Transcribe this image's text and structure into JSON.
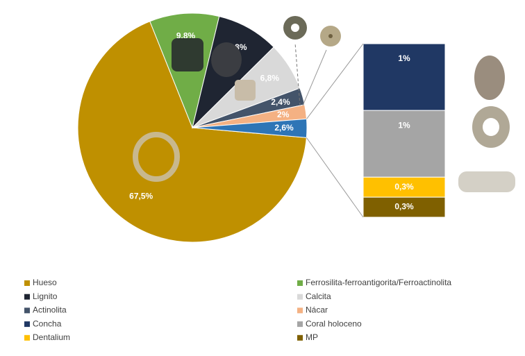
{
  "chart_data": [
    {
      "type": "pie",
      "categories": [
        "Hueso",
        "Ferrosilita-ferroantigorita/Ferroactinolita",
        "Lignito",
        "Calcita",
        "Actinolita",
        "Nácar",
        null
      ],
      "values": [
        67.5,
        9.8,
        8.8,
        6.8,
        2.4,
        2,
        2.6
      ],
      "value_labels": [
        "67,5%",
        "9,8%",
        "8,8%",
        "6,8%",
        "2,4%",
        "2%",
        "2,6%"
      ],
      "colors": [
        "#bf9000",
        "#70ad47",
        "#1f2532",
        "#d9d9d9",
        "#44546a",
        "#f4b183",
        "#2e75b6"
      ]
    },
    {
      "type": "stacked-bar",
      "series": [
        {
          "name": "Concha",
          "color": "#203864",
          "values": [
            1
          ],
          "value_labels": [
            "1%"
          ]
        },
        {
          "name": "Coral holoceno",
          "color": "#a5a5a5",
          "values": [
            1
          ],
          "value_labels": [
            "1%"
          ]
        },
        {
          "name": "Dentalium",
          "color": "#ffc000",
          "values": [
            0.3
          ],
          "value_labels": [
            "0,3%"
          ]
        },
        {
          "name": "MP",
          "color": "#7f6000",
          "values": [
            0.3
          ],
          "value_labels": [
            "0,3%"
          ]
        }
      ]
    }
  ]
}
